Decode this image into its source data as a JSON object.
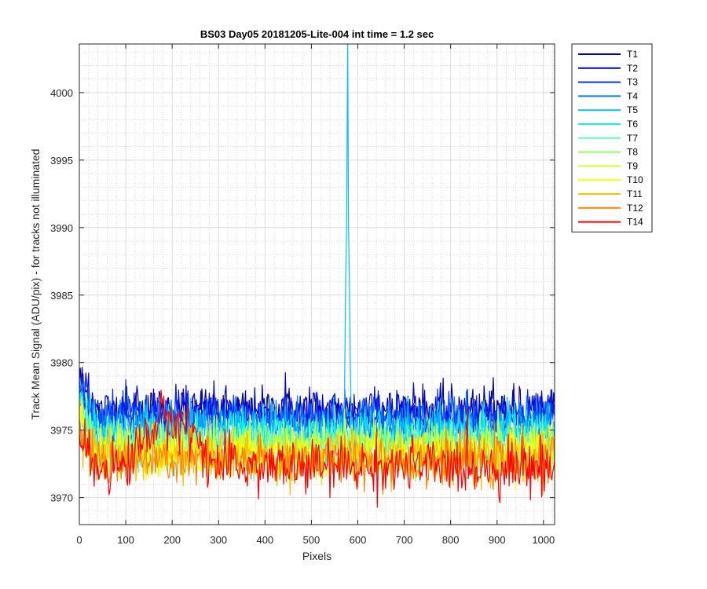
{
  "chart_data": {
    "type": "line",
    "title": "BS03 Day05 20181205-Lite-004 int time = 1.2 sec",
    "xlabel": "Pixels",
    "ylabel": "Track Mean Signal (ADU/pix) - for tracks not illuminated",
    "xlim": [
      0,
      1024
    ],
    "ylim": [
      3968,
      4003.6
    ],
    "x_ticks": [
      0,
      100,
      200,
      300,
      400,
      500,
      600,
      700,
      800,
      900,
      1000
    ],
    "y_ticks": [
      3970,
      3975,
      3980,
      3985,
      3990,
      3995,
      4000
    ],
    "grid": true,
    "minor_grid": true,
    "legend_position": "outside-top-right",
    "series": [
      {
        "name": "T1",
        "color": "#0000a8",
        "baseline": 3976.4,
        "noise": 0.9
      },
      {
        "name": "T2",
        "color": "#0000d8",
        "baseline": 3976.3,
        "noise": 0.9
      },
      {
        "name": "T3",
        "color": "#0030ff",
        "baseline": 3975.9,
        "noise": 0.9
      },
      {
        "name": "T4",
        "color": "#0080ff",
        "baseline": 3975.5,
        "noise": 0.9
      },
      {
        "name": "T5",
        "color": "#00bfff",
        "baseline": 3975.0,
        "noise": 0.9,
        "spike": {
          "x": 578,
          "peak": 4003.6
        }
      },
      {
        "name": "T6",
        "color": "#10f0f0",
        "baseline": 3974.6,
        "noise": 0.9
      },
      {
        "name": "T7",
        "color": "#60ffc0",
        "baseline": 3974.2,
        "noise": 0.9
      },
      {
        "name": "T8",
        "color": "#90ff70",
        "baseline": 3973.9,
        "noise": 0.9
      },
      {
        "name": "T9",
        "color": "#d0ff30",
        "baseline": 3973.6,
        "noise": 0.9
      },
      {
        "name": "T10",
        "color": "#ffff00",
        "baseline": 3973.3,
        "noise": 0.9
      },
      {
        "name": "T11",
        "color": "#ffc000",
        "baseline": 3973.0,
        "noise": 0.9
      },
      {
        "name": "T12",
        "color": "#ff8000",
        "baseline": 3972.7,
        "noise": 0.9
      },
      {
        "name": "T14",
        "color": "#ff0000",
        "baseline": 3972.3,
        "noise": 1.0,
        "hump": {
          "x_start": 100,
          "x_end": 320,
          "rise": 3.5
        }
      }
    ]
  }
}
